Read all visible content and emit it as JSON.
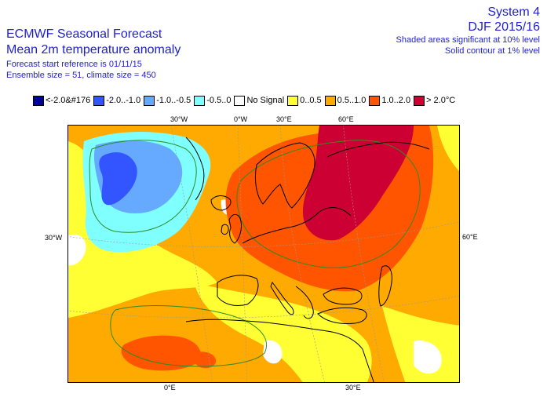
{
  "header": {
    "title_line1": "ECMWF Seasonal Forecast",
    "title_line2": "Mean 2m temperature anomaly",
    "start_ref": "Forecast start reference is 01/11/15",
    "ensemble": "Ensemble size = 51, climate size = 450",
    "system": "System 4",
    "period": "DJF 2015/16",
    "shaded_note": "Shaded areas significant at 10% level",
    "contour_note": "Solid contour at 1% level"
  },
  "legend": [
    {
      "label": "<-2.0&#176",
      "color": "#00009b"
    },
    {
      "label": "-2.0..-1.0",
      "color": "#3355ff"
    },
    {
      "label": "-1.0..-0.5",
      "color": "#66aaff"
    },
    {
      "label": "-0.5..0",
      "color": "#80ffff"
    },
    {
      "label": "No Signal",
      "color": "#ffffff"
    },
    {
      "label": "0..0.5",
      "color": "#ffff33"
    },
    {
      "label": "0.5..1.0",
      "color": "#ffaa00"
    },
    {
      "label": "1.0..2.0",
      "color": "#ff5500"
    },
    {
      "label": "> 2.0°C",
      "color": "#cc0033"
    }
  ],
  "graticule": {
    "top_30w": "30°W",
    "top_0w": "0°W",
    "top_30e": "30°E",
    "top_60e": "60°E",
    "left_30w": "30°W",
    "right_60e": "60°E",
    "bottom_0e": "0°E",
    "bottom_30e": "30°E"
  },
  "colors": {
    "text": "#1f1fd0",
    "contour": "#2e8b22",
    "coast": "#000000"
  }
}
